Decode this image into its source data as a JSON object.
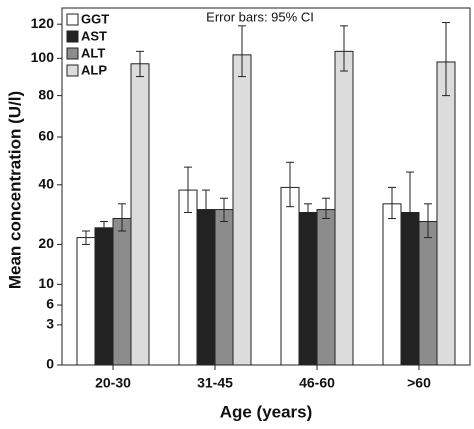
{
  "chart_data": {
    "type": "bar",
    "note": "Error bars: 95% CI",
    "x_label": "Age (years)",
    "y_label": "Mean concentration (U/l)",
    "categories": [
      "20-30",
      "31-45",
      "46-60",
      ">60"
    ],
    "y_scale": "power",
    "y_exponent": 0.58,
    "ylim": [
      0,
      130
    ],
    "yticks": [
      0,
      3,
      6,
      10,
      20,
      40,
      60,
      80,
      100,
      120
    ],
    "legend": "top-left",
    "series": [
      {
        "name": "GGT",
        "color": "#ffffff",
        "values": [
          22,
          38,
          39,
          33
        ],
        "error_low": [
          20,
          30,
          32,
          28
        ],
        "error_high": [
          24,
          47,
          49,
          39
        ]
      },
      {
        "name": "AST",
        "color": "#222222",
        "values": [
          25,
          31,
          30,
          30
        ],
        "error_low": [
          23,
          26,
          27,
          21
        ],
        "error_high": [
          27,
          38,
          33,
          45
        ]
      },
      {
        "name": "ALT",
        "color": "#8c8c8c",
        "values": [
          28,
          31,
          31,
          27
        ],
        "error_low": [
          24,
          27,
          28,
          22
        ],
        "error_high": [
          33,
          35,
          35,
          33
        ]
      },
      {
        "name": "ALP",
        "color": "#dcdcdc",
        "values": [
          97,
          102,
          104,
          98
        ],
        "error_low": [
          90,
          90,
          93,
          80
        ],
        "error_high": [
          104,
          119,
          119,
          121
        ]
      }
    ]
  }
}
